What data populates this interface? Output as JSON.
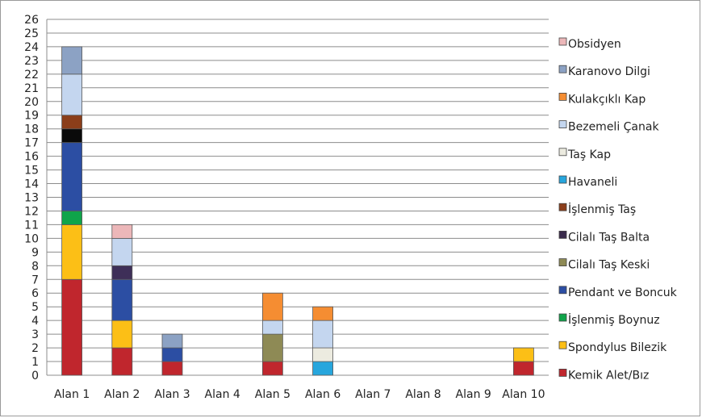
{
  "chart_data": {
    "type": "bar",
    "stacked": true,
    "categories": [
      "Alan 1",
      "Alan 2",
      "Alan 3",
      "Alan 4",
      "Alan 5",
      "Alan 6",
      "Alan 7",
      "Alan 8",
      "Alan 9",
      "Alan 10"
    ],
    "ylim": [
      0,
      26
    ],
    "yticks": [
      0,
      1,
      2,
      3,
      4,
      5,
      6,
      7,
      8,
      9,
      10,
      11,
      12,
      13,
      14,
      15,
      16,
      17,
      18,
      19,
      20,
      21,
      22,
      23,
      24,
      25,
      26
    ],
    "grid": true,
    "legend_position": "right",
    "series": [
      {
        "name": "Kemik Alet/Bız",
        "color": "#c0262d",
        "values": [
          7,
          2,
          1,
          0,
          1,
          0,
          0,
          0,
          0,
          1
        ]
      },
      {
        "name": "Spondylus Bilezik",
        "color": "#fcbf16",
        "values": [
          4,
          2,
          0,
          0,
          0,
          0,
          0,
          0,
          0,
          1
        ]
      },
      {
        "name": "İşlenmiş Boynuz",
        "color": "#0fa44a",
        "values": [
          1,
          0,
          0,
          0,
          0,
          0,
          0,
          0,
          0,
          0
        ]
      },
      {
        "name": "Pendant ve Boncuk",
        "color": "#2c4ea3",
        "values": [
          5,
          3,
          1,
          0,
          0,
          0,
          0,
          0,
          0,
          0
        ]
      },
      {
        "name": "Cilalı Taş Keski",
        "color": "#8e8a55",
        "values": [
          0,
          0,
          0,
          0,
          2,
          0,
          0,
          0,
          0,
          0
        ]
      },
      {
        "name": "Cilalı Taş Balta",
        "color": "#1a1a1a",
        "legend_color": "#3a2b4c",
        "values": [
          1,
          1,
          0,
          0,
          0,
          0,
          0,
          0,
          0,
          0
        ],
        "colors_per_bar": [
          "#0a0a0a",
          "#3e2f58",
          null,
          null,
          null,
          null,
          null,
          null,
          null,
          null
        ]
      },
      {
        "name": "İşlenmiş Taş",
        "color": "#8b3e1a",
        "values": [
          1,
          0,
          0,
          0,
          0,
          0,
          0,
          0,
          0,
          0
        ]
      },
      {
        "name": "Havaneli",
        "color": "#27a6dd",
        "values": [
          0,
          0,
          0,
          0,
          0,
          1,
          0,
          0,
          0,
          0
        ]
      },
      {
        "name": "Taş Kap",
        "color": "#ecebe0",
        "values": [
          0,
          0,
          0,
          0,
          0,
          1,
          0,
          0,
          0,
          0
        ]
      },
      {
        "name": "Bezemeli Çanak",
        "color": "#c4d6ef",
        "values": [
          3,
          2,
          0,
          0,
          1,
          2,
          0,
          0,
          0,
          0
        ]
      },
      {
        "name": "Kulakçıklı Kap",
        "color": "#f58d32",
        "values": [
          0,
          0,
          0,
          0,
          2,
          1,
          0,
          0,
          0,
          0
        ]
      },
      {
        "name": "Karanovo Dilgi",
        "color": "#8ca2c4",
        "values": [
          2,
          0,
          1,
          0,
          0,
          0,
          0,
          0,
          0,
          0
        ]
      },
      {
        "name": "Obsidyen",
        "color": "#ecb7b9",
        "values": [
          0,
          1,
          0,
          0,
          0,
          0,
          0,
          0,
          0,
          0
        ]
      }
    ]
  }
}
